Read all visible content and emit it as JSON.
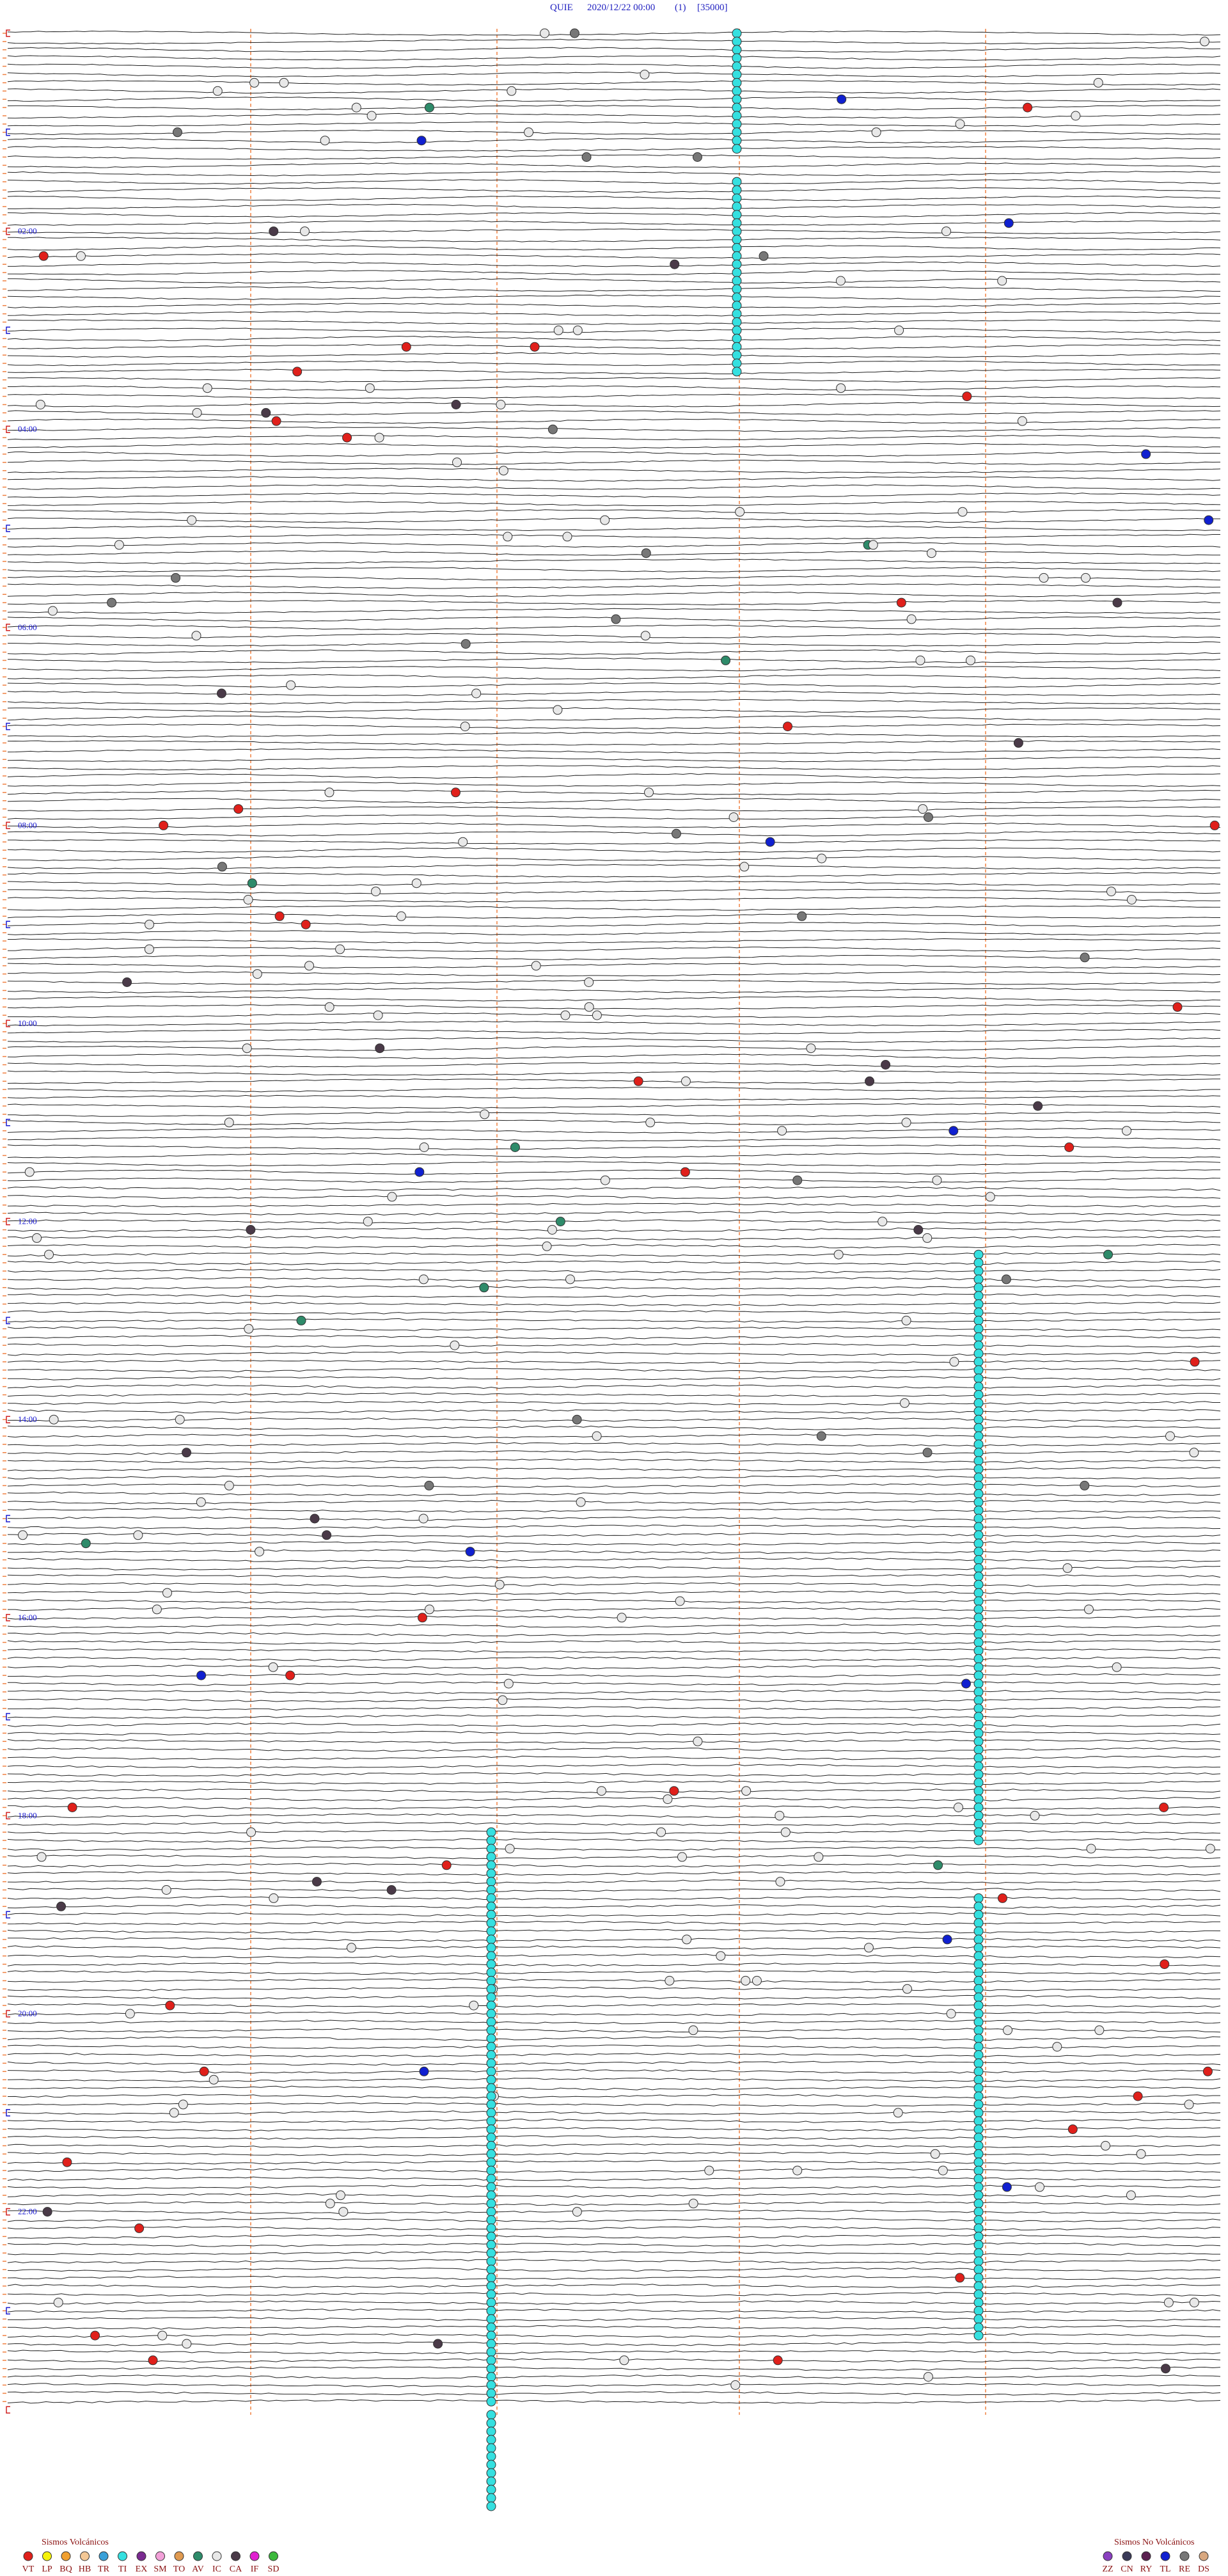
{
  "header": {
    "station": "QUIE",
    "datetime": "2020/12/22 00:00",
    "channel": "(1)",
    "scale": "[35000]"
  },
  "time_labels": [
    "02:00",
    "04:00",
    "06:00",
    "08:00",
    "10:00",
    "12:00",
    "14:00",
    "16:00",
    "18:00",
    "20:00",
    "22:00"
  ],
  "legend_volcanic": {
    "title": "Sismos Volcánicos",
    "items": [
      {
        "label": "VT",
        "color": "#e0201b"
      },
      {
        "label": "LP",
        "color": "#f5f20a"
      },
      {
        "label": "BQ",
        "color": "#f0a030"
      },
      {
        "label": "HB",
        "color": "#f4c896"
      },
      {
        "label": "TR",
        "color": "#3aa0d8"
      },
      {
        "label": "TI",
        "color": "#35e0e0"
      },
      {
        "label": "EX",
        "color": "#7a2a90"
      },
      {
        "label": "SM",
        "color": "#f2a0d8"
      },
      {
        "label": "TO",
        "color": "#e09a50"
      },
      {
        "label": "AV",
        "color": "#2e8b6a"
      },
      {
        "label": "IC",
        "color": "#e8e8e8"
      },
      {
        "label": "CA",
        "color": "#4a3a48"
      },
      {
        "label": "IF",
        "color": "#e020d0"
      },
      {
        "label": "SD",
        "color": "#3cb83c"
      }
    ]
  },
  "legend_non_volcanic": {
    "title": "Sismos No Volcánicos",
    "items": [
      {
        "label": "ZZ",
        "color": "#8a40c0"
      },
      {
        "label": "CN",
        "color": "#3a3a58"
      },
      {
        "label": "RY",
        "color": "#5a2050"
      },
      {
        "label": "TL",
        "color": "#1020d0"
      },
      {
        "label": "RE",
        "color": "#777777"
      },
      {
        "label": "DS",
        "color": "#d8a880"
      }
    ]
  }
}
